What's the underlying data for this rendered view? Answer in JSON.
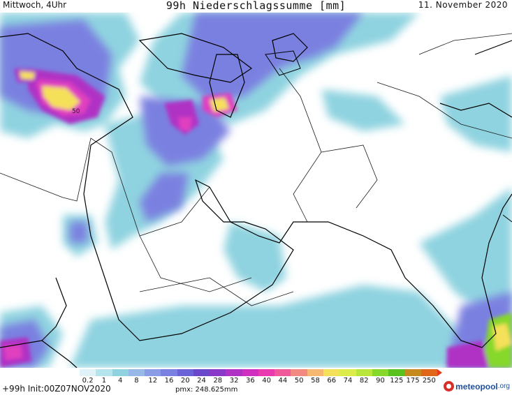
{
  "header": {
    "left": "Mittwoch, 4Uhr",
    "title": "99h Niederschlagssumme [mm]",
    "right": "11. November 2020"
  },
  "map_annotations": {
    "max_label": "50"
  },
  "colorbar": {
    "labels": [
      "0.2",
      "1",
      "4",
      "8",
      "12",
      "16",
      "20",
      "24",
      "28",
      "32",
      "36",
      "40",
      "44",
      "50",
      "58",
      "66",
      "74",
      "82",
      "90",
      "125",
      "175",
      "250"
    ],
    "colors": [
      "#e0f3f8",
      "#b5e4ec",
      "#8fd3e0",
      "#98b8e8",
      "#8a9ce6",
      "#7a80e0",
      "#6a62d6",
      "#6a48cc",
      "#8a38c8",
      "#b032c4",
      "#d030c0",
      "#ea3ab0",
      "#f05a9a",
      "#f38a82",
      "#f6b870",
      "#f5e05a",
      "#dcec4a",
      "#b8e63a",
      "#86d82a",
      "#5ac21e",
      "#c68a1e",
      "#e0661a"
    ]
  },
  "footer": {
    "left": "+99h Init:00Z07NOV2020",
    "pmx": "pmx: 248.625mm",
    "brand_name": "meteopool",
    "brand_tld": ".org"
  }
}
